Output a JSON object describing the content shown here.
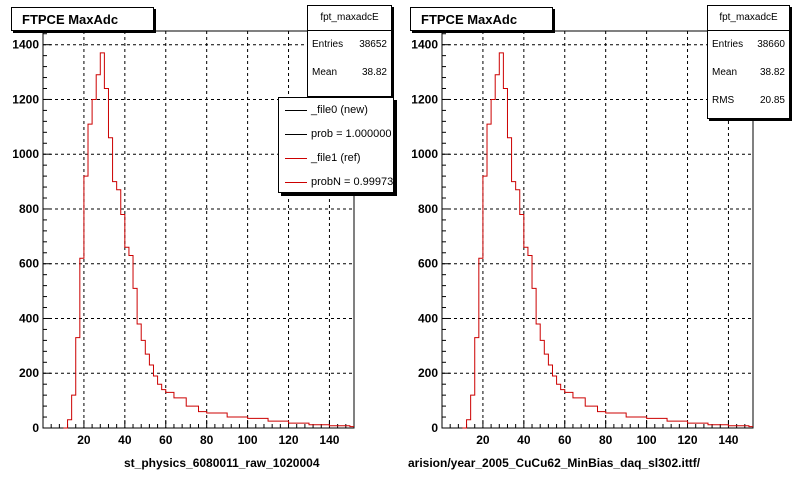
{
  "footer_left": "",
  "chart_data": [
    {
      "type": "bar",
      "title": "FTPCE MaxAdc",
      "xlabel": "st_physics_6080011_raw_1020004",
      "xlim": [
        0,
        152
      ],
      "ylim": [
        0,
        1450
      ],
      "xticks": [
        20,
        40,
        60,
        80,
        100,
        120,
        140
      ],
      "yticks": [
        0,
        200,
        400,
        600,
        800,
        1000,
        1200,
        1400
      ],
      "grid": true,
      "stats": {
        "name": "fpt_maxadcE",
        "rows": [
          {
            "label": "Entries",
            "value": "38652"
          },
          {
            "label": "Mean",
            "value": "38.82"
          }
        ]
      },
      "legend": {
        "placement": "top-right",
        "entries": [
          {
            "label": "_file0 (new)",
            "color": "#000000"
          },
          {
            "label": "prob = 1.000000",
            "color": "#000000"
          },
          {
            "label": "_file1 (ref)",
            "color": "#cc0000"
          },
          {
            "label": "probN = 0.999730",
            "color": "#cc0000"
          }
        ]
      },
      "series": [
        {
          "color": "#cc0000",
          "x": [
            10,
            12,
            14,
            16,
            18,
            20,
            22,
            24,
            26,
            28,
            30,
            32,
            34,
            36,
            38,
            40,
            42,
            44,
            46,
            48,
            50,
            52,
            54,
            56,
            58,
            60,
            64,
            70,
            76,
            80,
            90,
            100,
            110,
            120,
            130,
            140,
            150
          ],
          "y": [
            0,
            30,
            120,
            330,
            620,
            920,
            1110,
            1200,
            1290,
            1370,
            1240,
            1060,
            900,
            870,
            780,
            660,
            630,
            510,
            380,
            320,
            270,
            230,
            190,
            160,
            140,
            130,
            110,
            80,
            60,
            55,
            40,
            35,
            25,
            18,
            12,
            8,
            5
          ]
        }
      ]
    },
    {
      "type": "bar",
      "title": "FTPCE MaxAdc",
      "xlabel": "arision/year_2005_CuCu62_MinBias_daq_sl302.ittf/",
      "xlim": [
        0,
        152
      ],
      "ylim": [
        0,
        1450
      ],
      "xticks": [
        20,
        40,
        60,
        80,
        100,
        120,
        140
      ],
      "yticks": [
        0,
        200,
        400,
        600,
        800,
        1000,
        1200,
        1400
      ],
      "grid": true,
      "stats": {
        "name": "fpt_maxadcE",
        "rows": [
          {
            "label": "Entries",
            "value": "38660"
          },
          {
            "label": "Mean",
            "value": "38.82"
          },
          {
            "label": "RMS",
            "value": "20.85"
          }
        ]
      },
      "series": [
        {
          "color": "#cc0000",
          "x": [
            10,
            12,
            14,
            16,
            18,
            20,
            22,
            24,
            26,
            28,
            30,
            32,
            34,
            36,
            38,
            40,
            42,
            44,
            46,
            48,
            50,
            52,
            54,
            56,
            58,
            60,
            64,
            70,
            76,
            80,
            90,
            100,
            110,
            120,
            130,
            140,
            150
          ],
          "y": [
            0,
            30,
            120,
            330,
            620,
            920,
            1110,
            1200,
            1290,
            1370,
            1240,
            1060,
            900,
            870,
            780,
            660,
            630,
            510,
            380,
            320,
            270,
            230,
            190,
            160,
            140,
            130,
            110,
            80,
            60,
            55,
            40,
            35,
            25,
            18,
            12,
            8,
            5
          ]
        }
      ]
    }
  ]
}
